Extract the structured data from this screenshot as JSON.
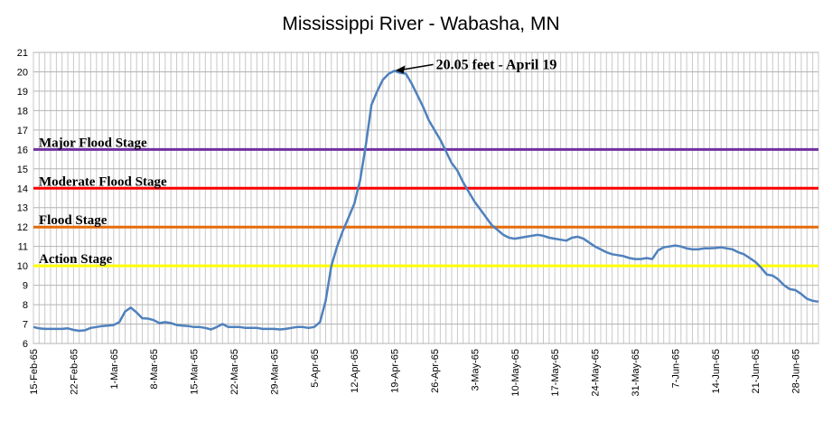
{
  "chart_data": {
    "type": "line",
    "title": "Mississippi River - Wabasha, MN",
    "xlabel": "",
    "ylabel": "",
    "ylim": [
      6,
      21
    ],
    "yticks": [
      6,
      7,
      8,
      9,
      10,
      11,
      12,
      13,
      14,
      15,
      16,
      17,
      18,
      19,
      20,
      21
    ],
    "xlim": [
      "1965-02-15",
      "1965-07-02"
    ],
    "xtick_labels": [
      "15-Feb-65",
      "22-Feb-65",
      "1-Mar-65",
      "8-Mar-65",
      "15-Mar-65",
      "22-Mar-65",
      "29-Mar-65",
      "5-Apr-65",
      "12-Apr-65",
      "19-Apr-65",
      "26-Apr-65",
      "3-May-65",
      "10-May-65",
      "17-May-65",
      "24-May-65",
      "31-May-65",
      "7-Jun-65",
      "14-Jun-65",
      "21-Jun-65",
      "28-Jun-65"
    ],
    "grid": true,
    "series": [
      {
        "color": "#4f81bd",
        "x": [
          "1965-02-15",
          "1965-02-16",
          "1965-02-17",
          "1965-02-18",
          "1965-02-19",
          "1965-02-20",
          "1965-02-21",
          "1965-02-22",
          "1965-02-23",
          "1965-02-24",
          "1965-02-25",
          "1965-02-26",
          "1965-02-27",
          "1965-02-28",
          "1965-03-01",
          "1965-03-02",
          "1965-03-03",
          "1965-03-04",
          "1965-03-05",
          "1965-03-06",
          "1965-03-07",
          "1965-03-08",
          "1965-03-09",
          "1965-03-10",
          "1965-03-11",
          "1965-03-12",
          "1965-03-13",
          "1965-03-14",
          "1965-03-15",
          "1965-03-16",
          "1965-03-17",
          "1965-03-18",
          "1965-03-19",
          "1965-03-20",
          "1965-03-21",
          "1965-03-22",
          "1965-03-23",
          "1965-03-24",
          "1965-03-25",
          "1965-03-26",
          "1965-03-27",
          "1965-03-28",
          "1965-03-29",
          "1965-03-30",
          "1965-03-31",
          "1965-04-01",
          "1965-04-02",
          "1965-04-03",
          "1965-04-04",
          "1965-04-05",
          "1965-04-06",
          "1965-04-07",
          "1965-04-08",
          "1965-04-09",
          "1965-04-10",
          "1965-04-11",
          "1965-04-12",
          "1965-04-13",
          "1965-04-14",
          "1965-04-15",
          "1965-04-16",
          "1965-04-17",
          "1965-04-18",
          "1965-04-19",
          "1965-04-20",
          "1965-04-21",
          "1965-04-22",
          "1965-04-23",
          "1965-04-24",
          "1965-04-25",
          "1965-04-26",
          "1965-04-27",
          "1965-04-28",
          "1965-04-29",
          "1965-04-30",
          "1965-05-01",
          "1965-05-02",
          "1965-05-03",
          "1965-05-04",
          "1965-05-05",
          "1965-05-06",
          "1965-05-07",
          "1965-05-08",
          "1965-05-09",
          "1965-05-10",
          "1965-05-11",
          "1965-05-12",
          "1965-05-13",
          "1965-05-14",
          "1965-05-15",
          "1965-05-16",
          "1965-05-17",
          "1965-05-18",
          "1965-05-19",
          "1965-05-20",
          "1965-05-21",
          "1965-05-22",
          "1965-05-23",
          "1965-05-24",
          "1965-05-25",
          "1965-05-26",
          "1965-05-27",
          "1965-05-28",
          "1965-05-29",
          "1965-05-30",
          "1965-05-31",
          "1965-06-01",
          "1965-06-02",
          "1965-06-03",
          "1965-06-04",
          "1965-06-05",
          "1965-06-06",
          "1965-06-07",
          "1965-06-08",
          "1965-06-09",
          "1965-06-10",
          "1965-06-11",
          "1965-06-12",
          "1965-06-13",
          "1965-06-14",
          "1965-06-15",
          "1965-06-16",
          "1965-06-17",
          "1965-06-18",
          "1965-06-19",
          "1965-06-20",
          "1965-06-21",
          "1965-06-22",
          "1965-06-23",
          "1965-06-24",
          "1965-06-25",
          "1965-06-26",
          "1965-06-27",
          "1965-06-28",
          "1965-06-29",
          "1965-06-30",
          "1965-07-01",
          "1965-07-02"
        ],
        "y": [
          6.85,
          6.78,
          6.75,
          6.75,
          6.75,
          6.75,
          6.78,
          6.7,
          6.65,
          6.68,
          6.8,
          6.85,
          6.9,
          6.92,
          6.95,
          7.1,
          7.65,
          7.85,
          7.6,
          7.3,
          7.28,
          7.2,
          7.05,
          7.1,
          7.05,
          6.95,
          6.92,
          6.9,
          6.85,
          6.85,
          6.8,
          6.72,
          6.85,
          7.0,
          6.85,
          6.85,
          6.85,
          6.8,
          6.8,
          6.8,
          6.75,
          6.75,
          6.75,
          6.72,
          6.75,
          6.8,
          6.85,
          6.85,
          6.8,
          6.85,
          7.1,
          8.2,
          10.0,
          11.0,
          11.8,
          12.5,
          13.2,
          14.4,
          16.2,
          18.3,
          19.0,
          19.6,
          19.9,
          20.05,
          19.95,
          19.9,
          19.4,
          18.8,
          18.2,
          17.5,
          17.0,
          16.5,
          15.9,
          15.3,
          14.9,
          14.3,
          13.8,
          13.3,
          12.9,
          12.5,
          12.1,
          11.85,
          11.6,
          11.45,
          11.4,
          11.45,
          11.5,
          11.55,
          11.6,
          11.55,
          11.45,
          11.4,
          11.35,
          11.3,
          11.45,
          11.5,
          11.4,
          11.2,
          11.0,
          10.85,
          10.7,
          10.6,
          10.55,
          10.5,
          10.4,
          10.35,
          10.35,
          10.4,
          10.35,
          10.8,
          10.95,
          11.0,
          11.05,
          11.0,
          10.9,
          10.85,
          10.85,
          10.9,
          10.9,
          10.92,
          10.95,
          10.9,
          10.85,
          10.7,
          10.6,
          10.4,
          10.2,
          9.9,
          9.55,
          9.5,
          9.3,
          9.0,
          8.8,
          8.75,
          8.55,
          8.3,
          8.2,
          8.15
        ]
      }
    ],
    "reference_lines": [
      {
        "label": "Major Flood Stage",
        "value": 16,
        "color": "#7030a0"
      },
      {
        "label": "Moderate Flood Stage",
        "value": 14,
        "color": "#ff0000"
      },
      {
        "label": "Flood Stage",
        "value": 12,
        "color": "#e46c0a"
      },
      {
        "label": "Action Stage",
        "value": 10,
        "color": "#ffff00"
      }
    ],
    "annotations": [
      {
        "text": "20.05 feet - April 19",
        "x": "1965-04-19",
        "y": 20.05
      }
    ]
  }
}
